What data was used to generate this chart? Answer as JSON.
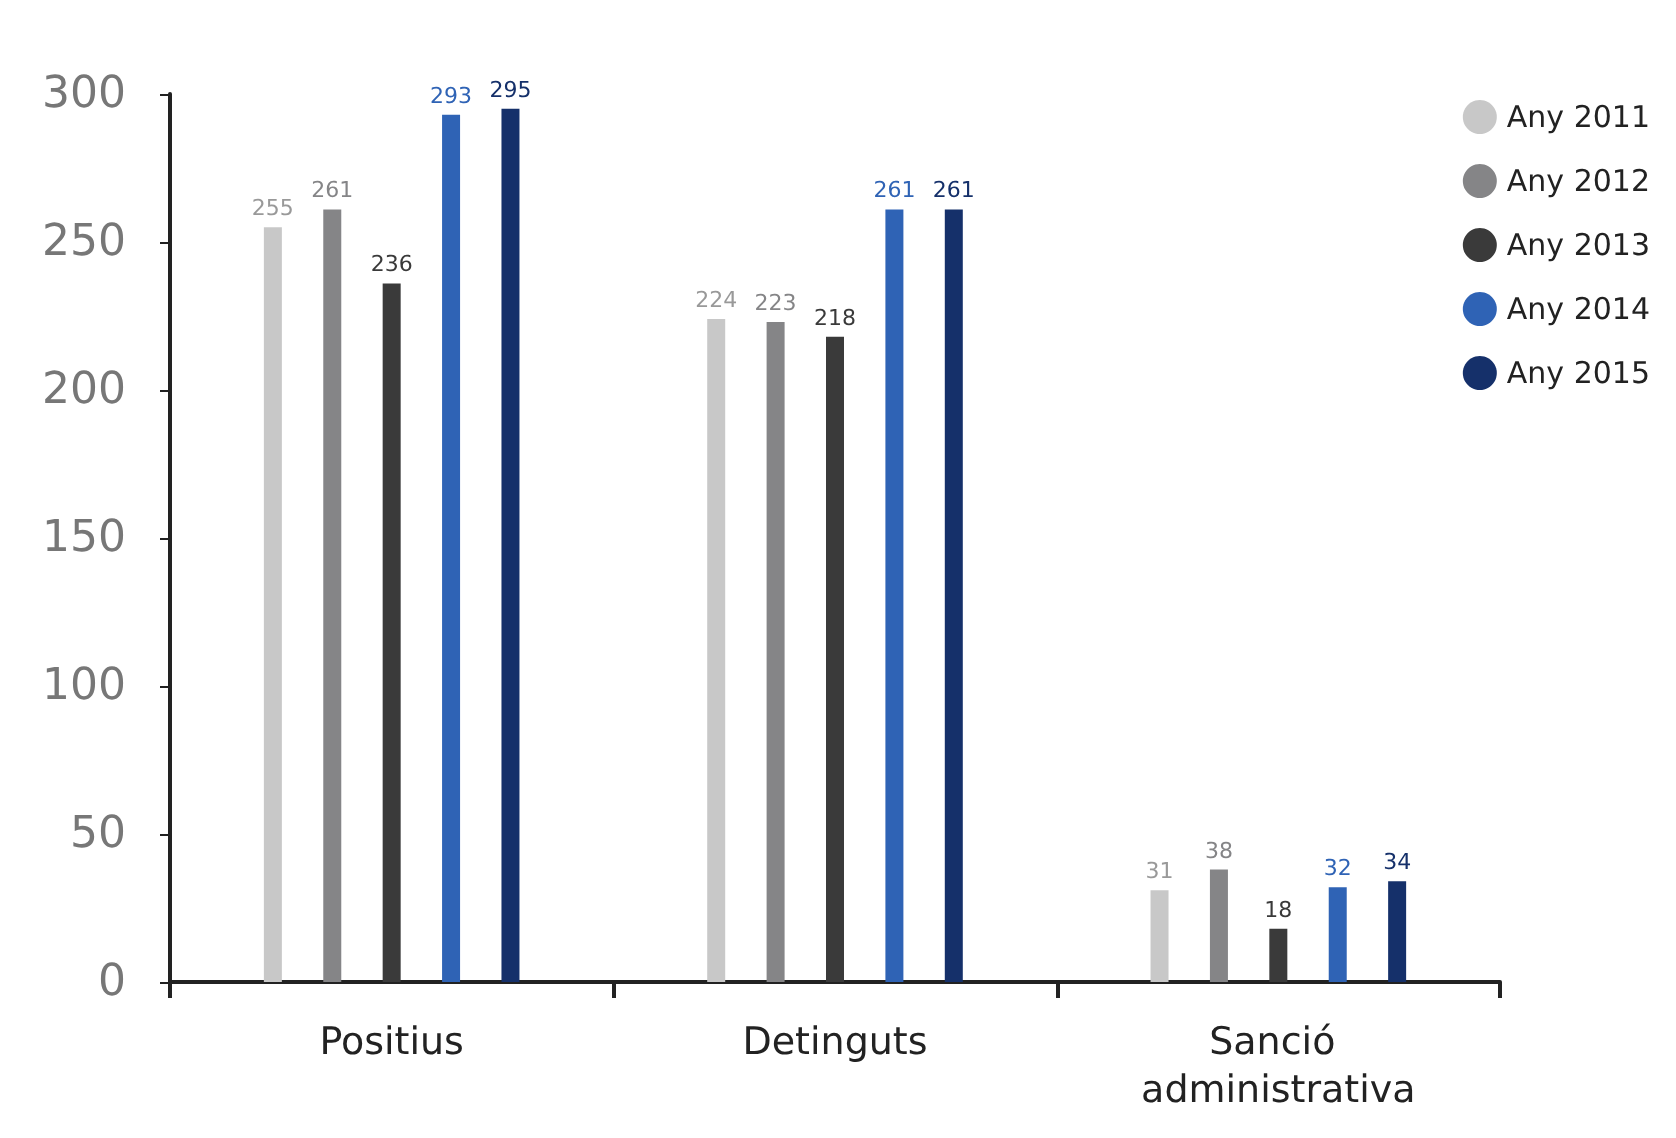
{
  "chart_data": {
    "type": "bar",
    "categories": [
      "Positius",
      "Detinguts",
      "Sanció administrativa"
    ],
    "series": [
      {
        "name": "Any 2011",
        "color": "#c8c8c8",
        "values": [
          255,
          224,
          31
        ]
      },
      {
        "name": "Any 2012",
        "color": "#858587",
        "values": [
          261,
          223,
          38
        ]
      },
      {
        "name": "Any 2013",
        "color": "#3a3a3a",
        "values": [
          236,
          218,
          18
        ]
      },
      {
        "name": "Any 2014",
        "color": "#2f63b5",
        "values": [
          293,
          261,
          32
        ]
      },
      {
        "name": "Any 2015",
        "color": "#15306a",
        "values": [
          295,
          261,
          34
        ]
      }
    ],
    "ylim": [
      0,
      300
    ],
    "yticks": [
      0,
      50,
      100,
      150,
      200,
      250,
      300
    ],
    "grid": false,
    "legend": "top right",
    "data_labels": true
  }
}
